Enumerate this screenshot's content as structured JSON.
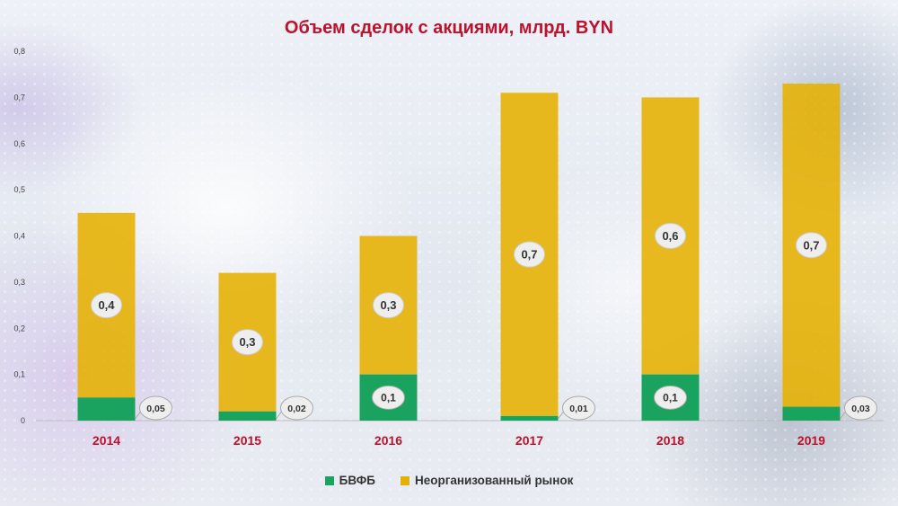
{
  "chart_data": {
    "type": "bar",
    "stacked": true,
    "title": "Объем сделок с акциями, млрд. BYN",
    "categories": [
      "2014",
      "2015",
      "2016",
      "2017",
      "2018",
      "2019"
    ],
    "series": [
      {
        "name": "БВФБ",
        "color": "#1aa35f",
        "values": [
          0.05,
          0.02,
          0.1,
          0.01,
          0.1,
          0.03
        ],
        "labels": [
          "0,05",
          "0,02",
          "0,1",
          "0,01",
          "0,1",
          "0,03"
        ]
      },
      {
        "name": "Неорганизованный рынок",
        "color": "#e6b000",
        "values": [
          0.4,
          0.3,
          0.3,
          0.7,
          0.6,
          0.7
        ],
        "labels": [
          "0,4",
          "0,3",
          "0,3",
          "0,7",
          "0,6",
          "0,7"
        ]
      }
    ],
    "yticks": [
      "0",
      "0,1",
      "0,2",
      "0,3",
      "0,4",
      "0,5",
      "0,6",
      "0,7",
      "0,8"
    ],
    "ylim": [
      0,
      0.8
    ],
    "legend_position": "bottom"
  }
}
